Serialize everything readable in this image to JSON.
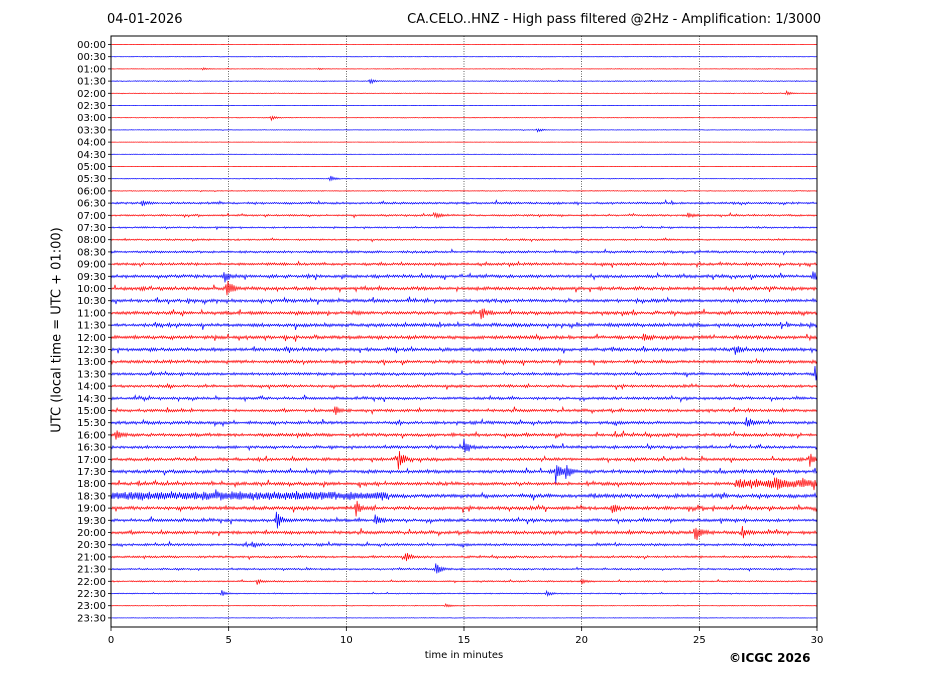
{
  "header": {
    "date": "04-01-2026",
    "title": "CA.CELO..HNZ - High pass filtered @2Hz - Amplification: 1/3000"
  },
  "footer": {
    "credit": "©ICGC 2026"
  },
  "colors": {
    "odd_trace": "#ff0000",
    "even_trace": "#0000ff",
    "grid": "#000000"
  },
  "chart_data": {
    "type": "line",
    "title": "CA.CELO..HNZ - High pass filtered @2Hz - Amplification: 1/3000",
    "xlabel": "time in minutes",
    "ylabel": "UTC (local time = UTC + 01:00)",
    "xlim": [
      0,
      30
    ],
    "x_ticks": [
      "0",
      "5",
      "10",
      "15",
      "20",
      "25",
      "30"
    ],
    "grid": "vertical dotted lines every 5 minutes",
    "row_labels": [
      "00:00",
      "00:30",
      "01:00",
      "01:30",
      "02:00",
      "02:30",
      "03:00",
      "03:30",
      "04:00",
      "04:30",
      "05:00",
      "05:30",
      "06:00",
      "06:30",
      "07:00",
      "07:30",
      "08:00",
      "08:30",
      "09:00",
      "09:30",
      "10:00",
      "10:30",
      "11:00",
      "11:30",
      "12:00",
      "12:30",
      "13:00",
      "13:30",
      "14:00",
      "14:30",
      "15:00",
      "15:30",
      "16:00",
      "16:30",
      "17:00",
      "17:30",
      "18:00",
      "18:30",
      "19:00",
      "19:30",
      "20:00",
      "20:30",
      "21:00",
      "21:30",
      "22:00",
      "22:30",
      "23:00",
      "23:30"
    ],
    "row_colors": "alternating red (00:00, 01:00, ...) and blue (00:30, 01:30, ...)",
    "noise_level": [
      0.2,
      0.2,
      0.3,
      0.5,
      0.3,
      0.2,
      0.3,
      0.3,
      0.2,
      0.3,
      0.2,
      0.4,
      0.5,
      1.2,
      1.0,
      0.9,
      0.9,
      1.3,
      1.5,
      1.8,
      1.9,
      1.8,
      1.9,
      2.0,
      2.0,
      1.9,
      1.8,
      1.6,
      1.5,
      1.5,
      1.6,
      1.7,
      1.8,
      1.6,
      1.7,
      1.9,
      1.8,
      2.2,
      1.9,
      1.7,
      1.8,
      1.4,
      1.2,
      1.0,
      0.8,
      0.6,
      0.4,
      0.3
    ],
    "events": [
      {
        "row": "01:00",
        "minute": 3.9,
        "amp": 1.2
      },
      {
        "row": "01:00",
        "minute": 8.8,
        "amp": 1.0
      },
      {
        "row": "01:30",
        "minute": 11.0,
        "amp": 3.0
      },
      {
        "row": "02:00",
        "minute": 28.7,
        "amp": 2.2
      },
      {
        "row": "03:00",
        "minute": 6.8,
        "amp": 2.5
      },
      {
        "row": "03:30",
        "minute": 18.1,
        "amp": 2.2
      },
      {
        "row": "05:30",
        "minute": 9.3,
        "amp": 3.2
      },
      {
        "row": "06:30",
        "minute": 1.3,
        "amp": 4.0
      },
      {
        "row": "07:00",
        "minute": 13.8,
        "amp": 3.0
      },
      {
        "row": "07:00",
        "minute": 24.5,
        "amp": 3.0
      },
      {
        "row": "09:30",
        "minute": 4.8,
        "amp": 6.0
      },
      {
        "row": "09:30",
        "minute": 29.8,
        "amp": 6.0
      },
      {
        "row": "10:00",
        "minute": 4.9,
        "amp": 13.0
      },
      {
        "row": "11:00",
        "minute": 15.7,
        "amp": 7.0
      },
      {
        "row": "12:00",
        "minute": 22.6,
        "amp": 6.0
      },
      {
        "row": "12:30",
        "minute": 26.5,
        "amp": 4.5
      },
      {
        "row": "13:30",
        "minute": 29.9,
        "amp": 11.0
      },
      {
        "row": "15:00",
        "minute": 9.5,
        "amp": 5.0
      },
      {
        "row": "15:30",
        "minute": 27.0,
        "amp": 5.0
      },
      {
        "row": "16:00",
        "minute": 0.2,
        "amp": 7.0
      },
      {
        "row": "16:30",
        "minute": 15.0,
        "amp": 7.0
      },
      {
        "row": "17:00",
        "minute": 12.2,
        "amp": 13.0
      },
      {
        "row": "17:00",
        "minute": 29.7,
        "amp": 7.0
      },
      {
        "row": "17:30",
        "minute": 18.9,
        "amp": 11.0
      },
      {
        "row": "17:30",
        "minute": 19.3,
        "amp": 9.0
      },
      {
        "row": "18:00",
        "minute": 28.2,
        "amp": 4.0
      },
      {
        "row": "19:00",
        "minute": 10.4,
        "amp": 8.0
      },
      {
        "row": "19:00",
        "minute": 21.3,
        "amp": 6.0
      },
      {
        "row": "19:30",
        "minute": 7.0,
        "amp": 12.0
      },
      {
        "row": "19:30",
        "minute": 11.2,
        "amp": 8.0
      },
      {
        "row": "20:00",
        "minute": 24.8,
        "amp": 9.0
      },
      {
        "row": "20:00",
        "minute": 26.8,
        "amp": 6.0
      },
      {
        "row": "20:30",
        "minute": 6.0,
        "amp": 4.0
      },
      {
        "row": "21:00",
        "minute": 12.5,
        "amp": 5.0
      },
      {
        "row": "21:30",
        "minute": 13.8,
        "amp": 7.0
      },
      {
        "row": "22:00",
        "minute": 6.2,
        "amp": 3.0
      },
      {
        "row": "22:00",
        "minute": 20.0,
        "amp": 3.0
      },
      {
        "row": "22:30",
        "minute": 4.7,
        "amp": 3.0
      },
      {
        "row": "22:30",
        "minute": 18.5,
        "amp": 3.0
      },
      {
        "row": "23:00",
        "minute": 14.2,
        "amp": 2.0
      }
    ],
    "sustained_noise": [
      {
        "row": "18:30",
        "from_minute": 0,
        "to_minute": 11.8,
        "amp": 3.0
      },
      {
        "row": "18:00",
        "from_minute": 26.5,
        "to_minute": 30,
        "amp": 3.5
      }
    ]
  }
}
